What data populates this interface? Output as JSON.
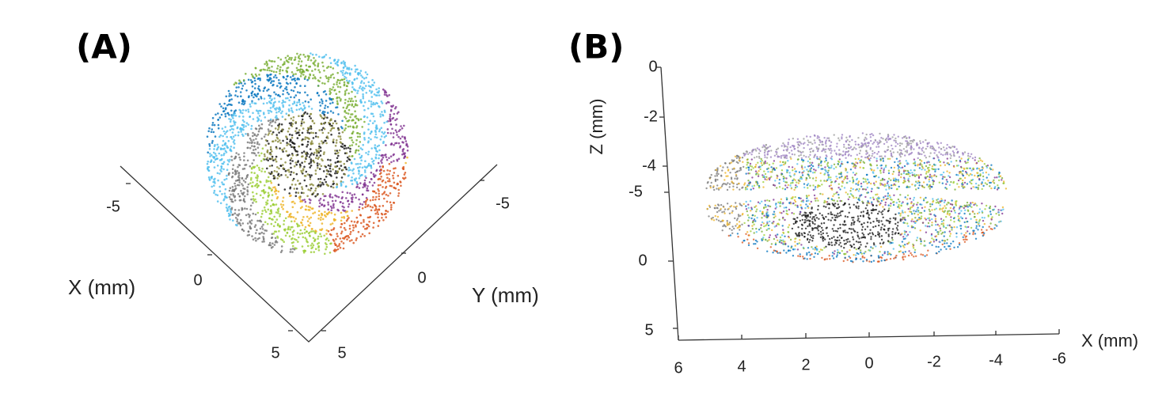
{
  "panels": [
    {
      "label": "(A)",
      "axes": [
        {
          "label": "X (mm)",
          "ticks": [
            -5,
            0,
            5
          ]
        },
        {
          "label": "Y (mm)",
          "ticks": [
            -5,
            0,
            5
          ]
        }
      ]
    },
    {
      "label": "(B)",
      "axes": [
        {
          "label": "Z (mm)",
          "ticks": [
            0,
            -2,
            -4
          ]
        },
        {
          "ticks": [
            -5,
            0,
            5
          ]
        },
        {
          "label": "X (mm)",
          "ticks": [
            6,
            4,
            2,
            0,
            -2,
            -4,
            -6
          ]
        }
      ]
    }
  ]
}
